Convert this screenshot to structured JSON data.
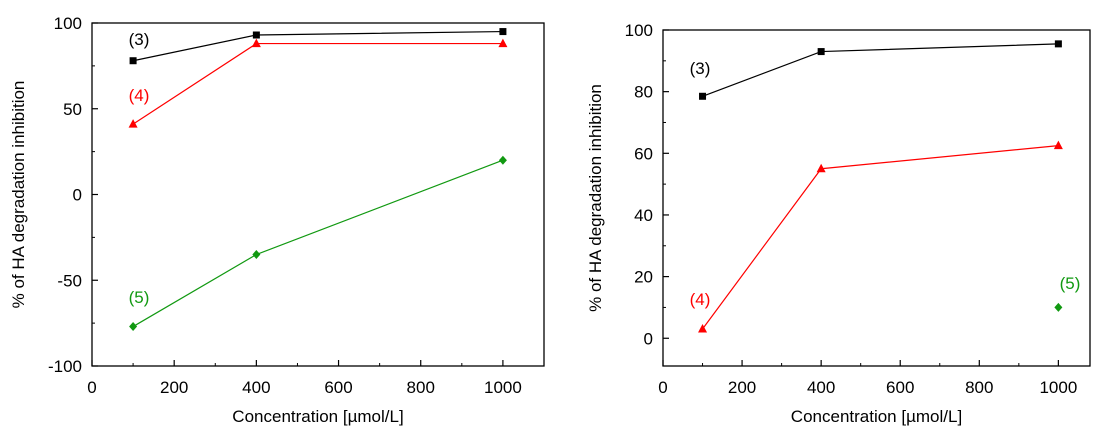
{
  "chart_data": [
    {
      "type": "line",
      "xlabel": "Concentration [µmol/L]",
      "ylabel": "% of HA degradation inhibition",
      "xlim": [
        0,
        1100
      ],
      "ylim": [
        -100,
        100
      ],
      "xticks": [
        0,
        200,
        400,
        600,
        800,
        1000
      ],
      "yticks": [
        -100,
        -50,
        0,
        50,
        100
      ],
      "x_tick_labels": [
        "0",
        "200",
        "400",
        "600",
        "800",
        "1000"
      ],
      "y_tick_labels": [
        "-100",
        "-50",
        "0",
        "50",
        "100"
      ],
      "grid": false,
      "series": [
        {
          "name": "(3)",
          "color": "#000000",
          "marker": "square",
          "x": [
            100,
            400,
            1000
          ],
          "values": [
            78,
            93,
            95
          ]
        },
        {
          "name": "(4)",
          "color": "#ff0000",
          "marker": "triangle",
          "x": [
            100,
            400,
            1000
          ],
          "values": [
            41,
            88,
            88
          ]
        },
        {
          "name": "(5)",
          "color": "#119911",
          "marker": "diamond",
          "x": [
            100,
            400,
            1000
          ],
          "values": [
            -77,
            -35,
            20
          ]
        }
      ]
    },
    {
      "type": "line",
      "xlabel": "Concentration [µmol/L]",
      "ylabel": "% of HA degradation inhibition",
      "xlim": [
        0,
        1080
      ],
      "ylim": [
        -9,
        100
      ],
      "xticks": [
        0,
        200,
        400,
        600,
        800,
        1000
      ],
      "yticks": [
        0,
        20,
        40,
        60,
        80,
        100
      ],
      "x_tick_labels": [
        "0",
        "200",
        "400",
        "600",
        "800",
        "1000"
      ],
      "y_tick_labels": [
        "0",
        "20",
        "40",
        "60",
        "80",
        "100"
      ],
      "grid": false,
      "series": [
        {
          "name": "(3)",
          "color": "#000000",
          "marker": "square",
          "x": [
            100,
            400,
            1000
          ],
          "values": [
            78.5,
            93,
            95.5
          ]
        },
        {
          "name": "(4)",
          "color": "#ff0000",
          "marker": "triangle",
          "x": [
            100,
            400,
            1000
          ],
          "values": [
            3,
            55,
            62.5
          ]
        },
        {
          "name": "(5)",
          "color": "#119911",
          "marker": "diamond",
          "x": [
            1000
          ],
          "values": [
            10
          ]
        }
      ]
    }
  ]
}
